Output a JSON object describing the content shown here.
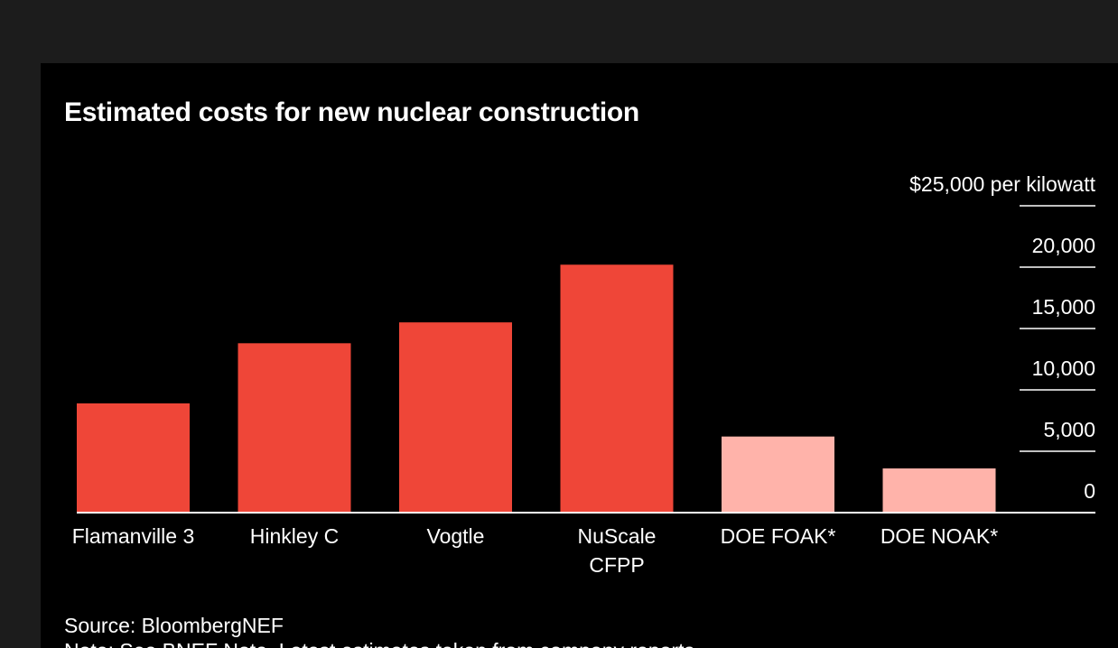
{
  "title": "Estimated costs for new nuclear construction",
  "source": "Source: BloombergNEF",
  "note": "Note: See BNEF Note. Latest estimates taken from company reports",
  "colors": {
    "background": "#000000",
    "bar_actual": "#ef4638",
    "bar_estimate": "#ffb3aa",
    "text": "#ffffff",
    "gridline": "#ffffff"
  },
  "chart_data": {
    "type": "bar",
    "categories": [
      "Flamanville 3",
      "Hinkley C",
      "Vogtle",
      "NuScale CFPP",
      "DOE FOAK*",
      "DOE NOAK*"
    ],
    "category_lines": [
      [
        "Flamanville 3"
      ],
      [
        "Hinkley C"
      ],
      [
        "Vogtle"
      ],
      [
        "NuScale",
        "CFPP"
      ],
      [
        "DOE FOAK*"
      ],
      [
        "DOE NOAK*"
      ]
    ],
    "values": [
      8900,
      13800,
      15500,
      20200,
      6200,
      3600
    ],
    "bar_styles": [
      "actual",
      "actual",
      "actual",
      "actual",
      "estimate",
      "estimate"
    ],
    "y_ticks": [
      0,
      5000,
      10000,
      15000,
      20000,
      25000
    ],
    "y_tick_labels": [
      "0",
      "5,000",
      "10,000",
      "15,000",
      "20,000",
      "$25,000 per kilowatt"
    ],
    "ylim": [
      0,
      25000
    ],
    "axis_position": "right",
    "grid": true,
    "legend": "none"
  }
}
